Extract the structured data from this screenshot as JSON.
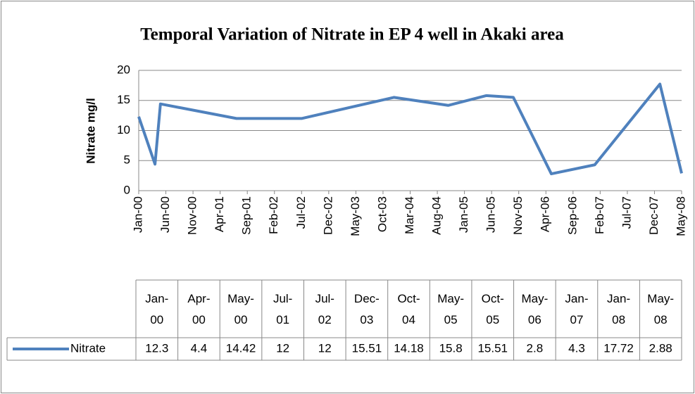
{
  "chart_data": {
    "type": "line",
    "title": "Temporal Variation of Nitrate in EP 4 well in Akaki area",
    "y_label": "Nitrate mg/l",
    "x": [
      "Jan-00",
      "Apr-00",
      "May-00",
      "Jul-01",
      "Jul-02",
      "Dec-03",
      "Oct-04",
      "May-05",
      "Oct-05",
      "May-06",
      "Jan-07",
      "Jan-08",
      "May-08"
    ],
    "series": [
      {
        "name": "Nitrate",
        "color": "#4f81bd",
        "values": [
          12.3,
          4.4,
          14.42,
          12,
          12,
          15.51,
          14.18,
          15.8,
          15.51,
          2.8,
          4.3,
          17.72,
          2.88
        ]
      }
    ],
    "xlim": [
      "Jan-00",
      "May-08"
    ],
    "xticks": [
      "Jan-00",
      "Jun-00",
      "Nov-00",
      "Apr-01",
      "Sep-01",
      "Feb-02",
      "Jul-02",
      "Dec-02",
      "May-03",
      "Oct-03",
      "Mar-04",
      "Aug-04",
      "Jan-05",
      "Jun-05",
      "Nov-05",
      "Apr-06",
      "Sep-06",
      "Feb-07",
      "Jul-07",
      "Dec-07",
      "May-08"
    ],
    "ylim": [
      0,
      20
    ],
    "yticks": [
      0,
      5,
      10,
      15,
      20
    ],
    "grid": true
  }
}
